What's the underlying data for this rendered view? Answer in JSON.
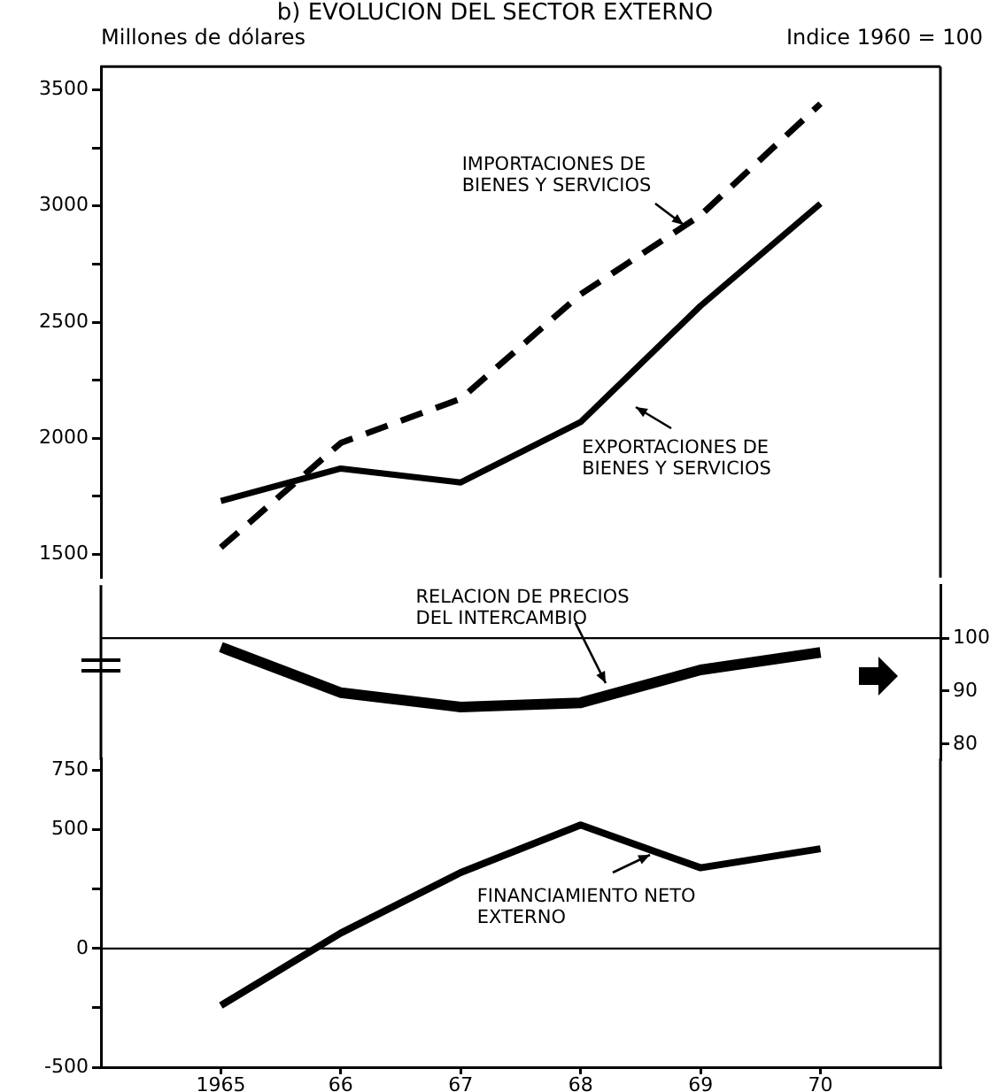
{
  "chart_data": [
    {
      "type": "line",
      "title": "b) EVOLUCION DEL SECTOR EXTERNO",
      "ylabel": "Millones de dólares",
      "x": [
        1965,
        1966,
        1967,
        1968,
        1969,
        1970
      ],
      "xlim": [
        1964,
        1971
      ],
      "ylim": [
        1400,
        3600
      ],
      "yticks": [
        1500,
        {
          "value": 1750,
          "label": null
        },
        2000,
        {
          "value": 2250,
          "label": null
        },
        2500,
        {
          "value": 2750,
          "label": null
        },
        3000,
        {
          "value": 3250,
          "label": null
        },
        3500
      ],
      "tick_labels": "y",
      "grid": false,
      "marker": "none",
      "series": [
        {
          "name": "IMPORTACIONES DE BIENES Y SERVICIOS",
          "color": "#000000",
          "line_style": "dashed",
          "values": [
            1530,
            1980,
            2170,
            2620,
            2960,
            3440
          ]
        },
        {
          "name": "EXPORTACIONES DE BIENES Y SERVICIOS",
          "color": "#000000",
          "line_style": "solid",
          "values": [
            1730,
            1870,
            1810,
            2070,
            2570,
            3010
          ]
        }
      ]
    },
    {
      "type": "line",
      "y2label": "Indice 1960 = 100",
      "x": [
        1965,
        1966,
        1967,
        1968,
        1969,
        1970
      ],
      "xlim": [
        1964,
        1971
      ],
      "y2lim": [
        77,
        110
      ],
      "y2ticks": [
        80,
        90,
        100
      ],
      "tick_labels": "y",
      "grid": false,
      "marker": "none",
      "series": [
        {
          "name": "RELACION DE PRECIOS DEL INTERCAMBIO",
          "color": "#000000",
          "axis": "y2",
          "line_style": "solid",
          "values": [
            98.3,
            89.7,
            87,
            87.8,
            94,
            97.3
          ]
        }
      ],
      "ref_lines": [
        {
          "axis": "y2",
          "value": 100,
          "color": "#000000"
        }
      ]
    },
    {
      "type": "line",
      "x": [
        1965,
        1966,
        1967,
        1968,
        1969,
        1970
      ],
      "xlim": [
        1964,
        1971
      ],
      "xticks": [
        1965,
        {
          "value": 1966,
          "label": "66"
        },
        {
          "value": 1967,
          "label": "67"
        },
        {
          "value": 1968,
          "label": "68"
        },
        {
          "value": 1969,
          "label": "69"
        },
        {
          "value": 1970,
          "label": "70"
        }
      ],
      "ylim": [
        -500,
        800
      ],
      "yticks": [
        -500,
        {
          "value": -250,
          "label": null
        },
        0,
        {
          "value": 250,
          "label": null
        },
        500,
        750
      ],
      "grid": false,
      "marker": "none",
      "series": [
        {
          "name": "FINANCIAMIENTO NETO EXTERNO",
          "color": "#000000",
          "line_style": "solid",
          "values": [
            -240,
            65,
            320,
            520,
            340,
            420
          ]
        }
      ],
      "ref_lines": [
        {
          "axis": "y",
          "value": 0,
          "color": "#000000"
        }
      ]
    }
  ]
}
